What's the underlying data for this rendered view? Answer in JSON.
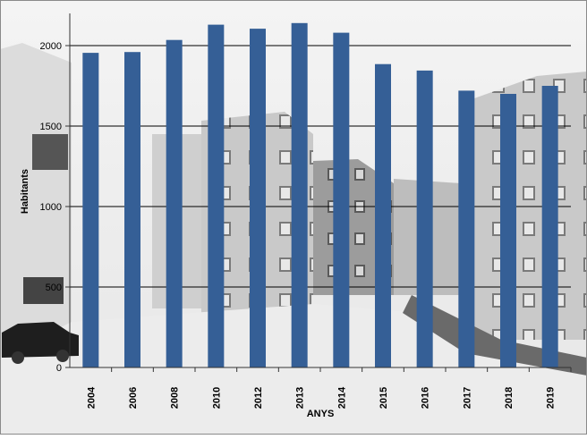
{
  "chart_data": {
    "type": "bar",
    "categories": [
      "2004",
      "2006",
      "2008",
      "2010",
      "2012",
      "2013",
      "2014",
      "2015",
      "2016",
      "2017",
      "2018",
      "2019"
    ],
    "values": [
      1955,
      1960,
      2035,
      2130,
      2105,
      2140,
      2080,
      1885,
      1845,
      1720,
      1700,
      1750
    ],
    "xlabel": "ANYS",
    "ylabel": "Habitants",
    "ylim": [
      0,
      2200
    ],
    "yticks": [
      0,
      500,
      1000,
      1500,
      2000
    ],
    "grid": true,
    "legend": "none",
    "colors": {
      "bar": "#355F96",
      "grid": "#000000",
      "axis": "#333333"
    },
    "background": "grayscale photograph of apartment buildings"
  }
}
